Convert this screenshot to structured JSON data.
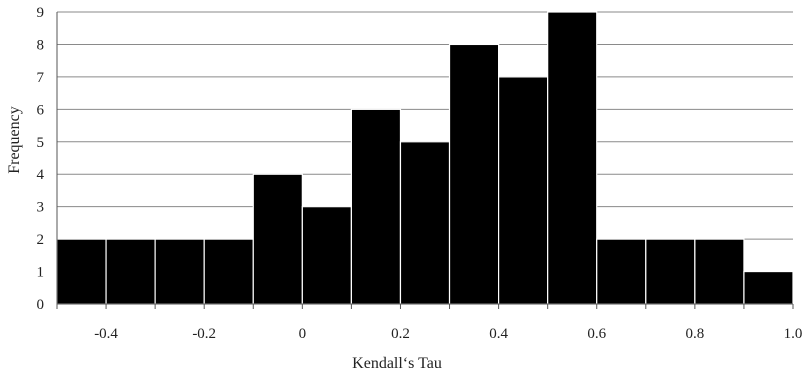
{
  "chart_data": {
    "type": "bar",
    "title": "",
    "xlabel": "Kendall‘s Tau",
    "ylabel": "Frequency",
    "bin_width": 0.1,
    "bins": [
      {
        "from": -0.5,
        "to": -0.4,
        "count": 2
      },
      {
        "from": -0.4,
        "to": -0.3,
        "count": 2
      },
      {
        "from": -0.3,
        "to": -0.2,
        "count": 2
      },
      {
        "from": -0.2,
        "to": -0.1,
        "count": 2
      },
      {
        "from": -0.1,
        "to": 0.0,
        "count": 4
      },
      {
        "from": 0.0,
        "to": 0.1,
        "count": 3
      },
      {
        "from": 0.1,
        "to": 0.2,
        "count": 6
      },
      {
        "from": 0.2,
        "to": 0.3,
        "count": 5
      },
      {
        "from": 0.3,
        "to": 0.4,
        "count": 8
      },
      {
        "from": 0.4,
        "to": 0.5,
        "count": 7
      },
      {
        "from": 0.5,
        "to": 0.6,
        "count": 9
      },
      {
        "from": 0.6,
        "to": 0.7,
        "count": 2
      },
      {
        "from": 0.7,
        "to": 0.8,
        "count": 2
      },
      {
        "from": 0.8,
        "to": 0.9,
        "count": 2
      },
      {
        "from": 0.9,
        "to": 1.0,
        "count": 1
      }
    ],
    "x_ticks": [
      "-0.4",
      "-0.2",
      "0",
      "0.2",
      "0.4",
      "0.6",
      "0.8",
      "1.0"
    ],
    "y_ticks": [
      "0",
      "1",
      "2",
      "3",
      "4",
      "5",
      "6",
      "7",
      "8",
      "9"
    ],
    "xlim": [
      -0.5,
      1.0
    ],
    "ylim": [
      0,
      9
    ],
    "grid": "horizontal",
    "legend": "none",
    "bar_color": "#000000",
    "edge_color": "#ffffff"
  }
}
